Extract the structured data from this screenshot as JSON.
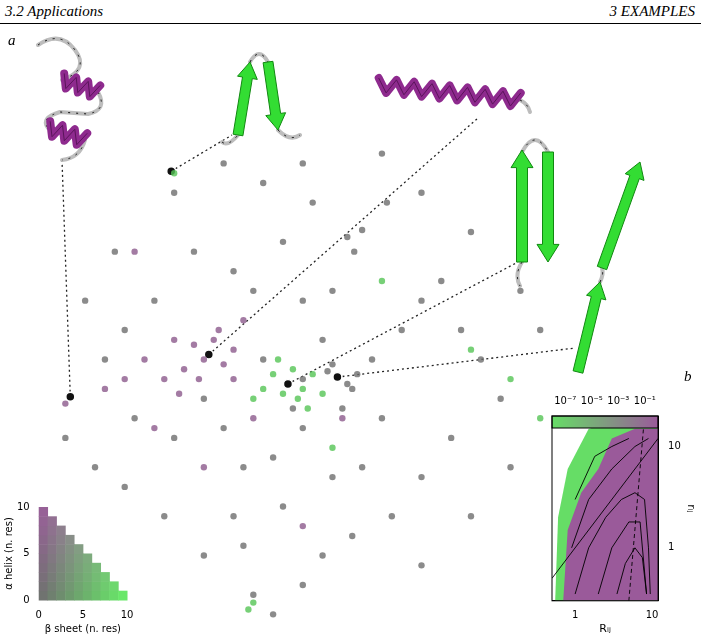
{
  "header": {
    "left": "3.2 Applications",
    "right": "3 EXAMPLES"
  },
  "chart_data": [
    {
      "panel": "a",
      "type": "scatter",
      "xlim": [
        0,
        560
      ],
      "ylim": [
        0,
        610
      ],
      "tick_labels": false,
      "grid": false,
      "series": [
        {
          "color": "#6e6e6e",
          "values": [
            [
              345,
              403
            ],
            [
              352,
              388
            ],
            [
              360,
              410
            ],
            [
              385,
              438
            ],
            [
              330,
              348
            ],
            [
              300,
              338
            ],
            [
              250,
              348
            ],
            [
              230,
              368
            ],
            [
              280,
              398
            ],
            [
              310,
              438
            ],
            [
              260,
              458
            ],
            [
              190,
              388
            ],
            [
              150,
              338
            ],
            [
              120,
              308
            ],
            [
              100,
              278
            ],
            [
              130,
              218
            ],
            [
              170,
              198
            ],
            [
              220,
              208
            ],
            [
              240,
              168
            ],
            [
              270,
              178
            ],
            [
              300,
              208
            ],
            [
              350,
              248
            ],
            [
              370,
              278
            ],
            [
              380,
              218
            ],
            [
              400,
              308
            ],
            [
              420,
              338
            ],
            [
              440,
              358
            ],
            [
              460,
              308
            ],
            [
              480,
              278
            ],
            [
              500,
              238
            ],
            [
              450,
              198
            ],
            [
              420,
              158
            ],
            [
              390,
              118
            ],
            [
              350,
              98
            ],
            [
              320,
              78
            ],
            [
              300,
              48
            ],
            [
              250,
              38
            ],
            [
              200,
              78
            ],
            [
              160,
              118
            ],
            [
              120,
              148
            ],
            [
              90,
              168
            ],
            [
              60,
              198
            ],
            [
              80,
              338
            ],
            [
              110,
              388
            ],
            [
              170,
              448
            ],
            [
              220,
              478
            ],
            [
              300,
              478
            ],
            [
              380,
              488
            ],
            [
              420,
              448
            ],
            [
              470,
              408
            ],
            [
              520,
              348
            ],
            [
              540,
              308
            ],
            [
              510,
              168
            ],
            [
              470,
              118
            ],
            [
              420,
              68
            ],
            [
              280,
              128
            ],
            [
              230,
              118
            ],
            [
              200,
              238
            ],
            [
              260,
              278
            ],
            [
              320,
              298
            ],
            [
              300,
              258
            ],
            [
              290,
              228
            ],
            [
              340,
              228
            ],
            [
              360,
              168
            ],
            [
              330,
              158
            ],
            [
              240,
              88
            ],
            [
              270,
              18
            ],
            [
              325,
              266
            ],
            [
              345,
              253
            ],
            [
              330,
              273
            ],
            [
              355,
              263
            ]
          ]
        },
        {
          "color": "#8c5a8c",
          "values": [
            [
              190,
              293
            ],
            [
              200,
              278
            ],
            [
              210,
              298
            ],
            [
              220,
              273
            ],
            [
              180,
              268
            ],
            [
              195,
              258
            ],
            [
              230,
              288
            ],
            [
              215,
              308
            ],
            [
              170,
              298
            ],
            [
              160,
              258
            ],
            [
              175,
              243
            ],
            [
              230,
              258
            ],
            [
              240,
              318
            ],
            [
              120,
              258
            ],
            [
              140,
              278
            ],
            [
              100,
              248
            ],
            [
              60,
              233
            ],
            [
              150,
              208
            ],
            [
              250,
              218
            ],
            [
              130,
              388
            ],
            [
              300,
              108
            ],
            [
              200,
              168
            ],
            [
              340,
              218
            ]
          ]
        },
        {
          "color": "#55c455",
          "values": [
            [
              270,
              263
            ],
            [
              290,
              268
            ],
            [
              300,
              248
            ],
            [
              280,
              243
            ],
            [
              260,
              248
            ],
            [
              295,
              238
            ],
            [
              310,
              263
            ],
            [
              275,
              278
            ],
            [
              305,
              228
            ],
            [
              320,
              243
            ],
            [
              250,
              238
            ],
            [
              170,
              468
            ],
            [
              330,
              188
            ],
            [
              380,
              358
            ],
            [
              470,
              288
            ],
            [
              510,
              258
            ],
            [
              540,
              218
            ],
            [
              245,
              23
            ],
            [
              250,
              30
            ]
          ]
        },
        {
          "color": "#111111",
          "marker": "highlight",
          "values": [
            [
              65,
              240
            ],
            [
              167,
              470
            ],
            [
              205,
              283
            ],
            [
              285,
              253
            ],
            [
              335,
              260
            ]
          ]
        }
      ]
    },
    {
      "type": "colormap",
      "x_label": "β sheet (n. res)",
      "y_label": "α helix (n. res)",
      "xlim": [
        0,
        10
      ],
      "ylim": [
        0,
        10
      ],
      "xticks": [
        0,
        5,
        10
      ],
      "yticks": [
        0,
        5,
        10
      ],
      "colors": [
        "#6e6e6e",
        "#9a5a9a",
        "#66ee66"
      ]
    },
    {
      "panel": "b",
      "type": "contour",
      "x_label": "Rᵢⱼ",
      "y_label": "rᵢⱼ",
      "log": true,
      "grid": false,
      "xlim": [
        0.5,
        12
      ],
      "ylim": [
        0.3,
        20
      ],
      "xticks": [
        1,
        10
      ],
      "yticks": [
        1,
        10
      ],
      "colorbar": {
        "lim": [
          1e-08,
          1
        ],
        "ticks": [
          {
            "value": 1e-07,
            "label": "10⁻⁷"
          },
          {
            "value": 1e-05,
            "label": "10⁻⁵"
          },
          {
            "value": 0.001,
            "label": "10⁻³"
          },
          {
            "value": 0.1,
            "label": "10⁻¹"
          }
        ],
        "colors": [
          "#66dd66",
          "#9a5a9a"
        ]
      },
      "regions": [
        {
          "color": "#66dd66",
          "x": [
            0.55,
            0.6,
            0.8,
            1.5,
            4,
            12,
            12
          ],
          "y": [
            0.3,
            2,
            6,
            15,
            18,
            18,
            0.3
          ]
        },
        {
          "color": "#9a5a9a",
          "x": [
            0.7,
            0.8,
            1.2,
            2,
            3,
            6,
            12,
            12
          ],
          "y": [
            0.3,
            1.5,
            3.5,
            6,
            12,
            15,
            15,
            0.3
          ]
        }
      ],
      "series": [
        {
          "color": "#000000",
          "line_style": "solid",
          "x": [
            0.5,
            12
          ],
          "y": [
            0.5,
            12
          ]
        },
        {
          "color": "#000000",
          "line_style": "dashed",
          "x": [
            5,
            8
          ],
          "y": [
            0.3,
            20
          ]
        },
        {
          "color": "#000000",
          "line_style": "solid",
          "x": [
            1,
            1.5,
            2.5,
            4,
            6,
            8,
            9,
            9.5
          ],
          "y": [
            0.35,
            1,
            2,
            3,
            3.5,
            3,
            1,
            0.35
          ]
        },
        {
          "color": "#000000",
          "line_style": "solid",
          "x": [
            2,
            3,
            5,
            7,
            8.5
          ],
          "y": [
            0.35,
            1,
            1.8,
            1.8,
            0.35
          ]
        },
        {
          "color": "#000000",
          "line_style": "solid",
          "x": [
            0.9,
            1.5,
            3,
            6,
            9
          ],
          "y": [
            1,
            3,
            6,
            10,
            12
          ]
        },
        {
          "color": "#000000",
          "line_style": "solid",
          "x": [
            1,
            1.8,
            3,
            5
          ],
          "y": [
            3,
            8,
            10,
            12
          ]
        },
        {
          "color": "#000000",
          "line_style": "solid",
          "x": [
            3.5,
            4.5,
            6,
            7.5,
            8.5
          ],
          "y": [
            0.35,
            0.7,
            1,
            0.8,
            0.35
          ]
        }
      ]
    }
  ]
}
